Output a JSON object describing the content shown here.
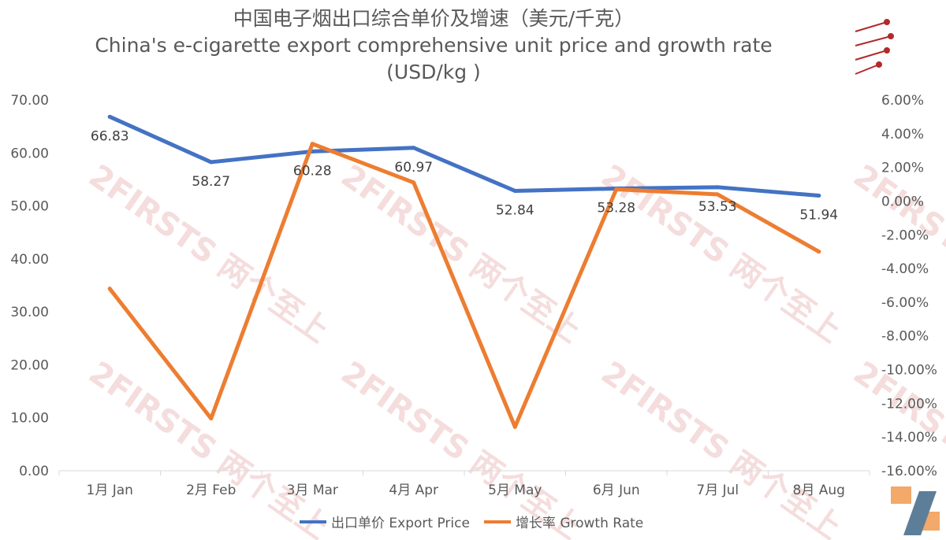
{
  "chart_data": {
    "type": "line",
    "title": "中国电子烟出口综合单价及增速（美元/千克）",
    "subtitle": "China's e-cigarette export comprehensive unit price and growth rate",
    "unit_line": "(USD/kg )",
    "categories": [
      "1月 Jan",
      "2月 Feb",
      "3月 Mar",
      "4月 Apr",
      "5月 May",
      "6月 Jun",
      "7月 Jul",
      "8月 Aug"
    ],
    "series": [
      {
        "name": "出口单价 Export Price",
        "axis": "left",
        "color": "#4472C4",
        "values": [
          66.83,
          58.27,
          60.28,
          60.97,
          52.84,
          53.28,
          53.53,
          51.94
        ],
        "labels": [
          "66.83",
          "58.27",
          "60.28",
          "60.97",
          "52.84",
          "53.28",
          "53.53",
          "51.94"
        ]
      },
      {
        "name": "增长率 Growth Rate",
        "axis": "right",
        "color": "#ED7D31",
        "values": [
          -5.2,
          -12.9,
          3.4,
          1.1,
          -13.4,
          0.7,
          0.4,
          -3.0
        ]
      }
    ],
    "left_axis": {
      "ylim": [
        0,
        70
      ],
      "ticks": [
        "0.00",
        "10.00",
        "20.00",
        "30.00",
        "40.00",
        "50.00",
        "60.00",
        "70.00"
      ]
    },
    "right_axis": {
      "ylim": [
        -16,
        6
      ],
      "ticks": [
        "-16.00%",
        "-14.00%",
        "-12.00%",
        "-10.00%",
        "-8.00%",
        "-6.00%",
        "-4.00%",
        "-2.00%",
        "0.00%",
        "2.00%",
        "4.00%",
        "6.00%"
      ]
    },
    "legend_position": "bottom",
    "grid": false
  },
  "logo": {
    "text": "2FIRSTS",
    "watermark": "2FIRSTS 两个至上"
  }
}
